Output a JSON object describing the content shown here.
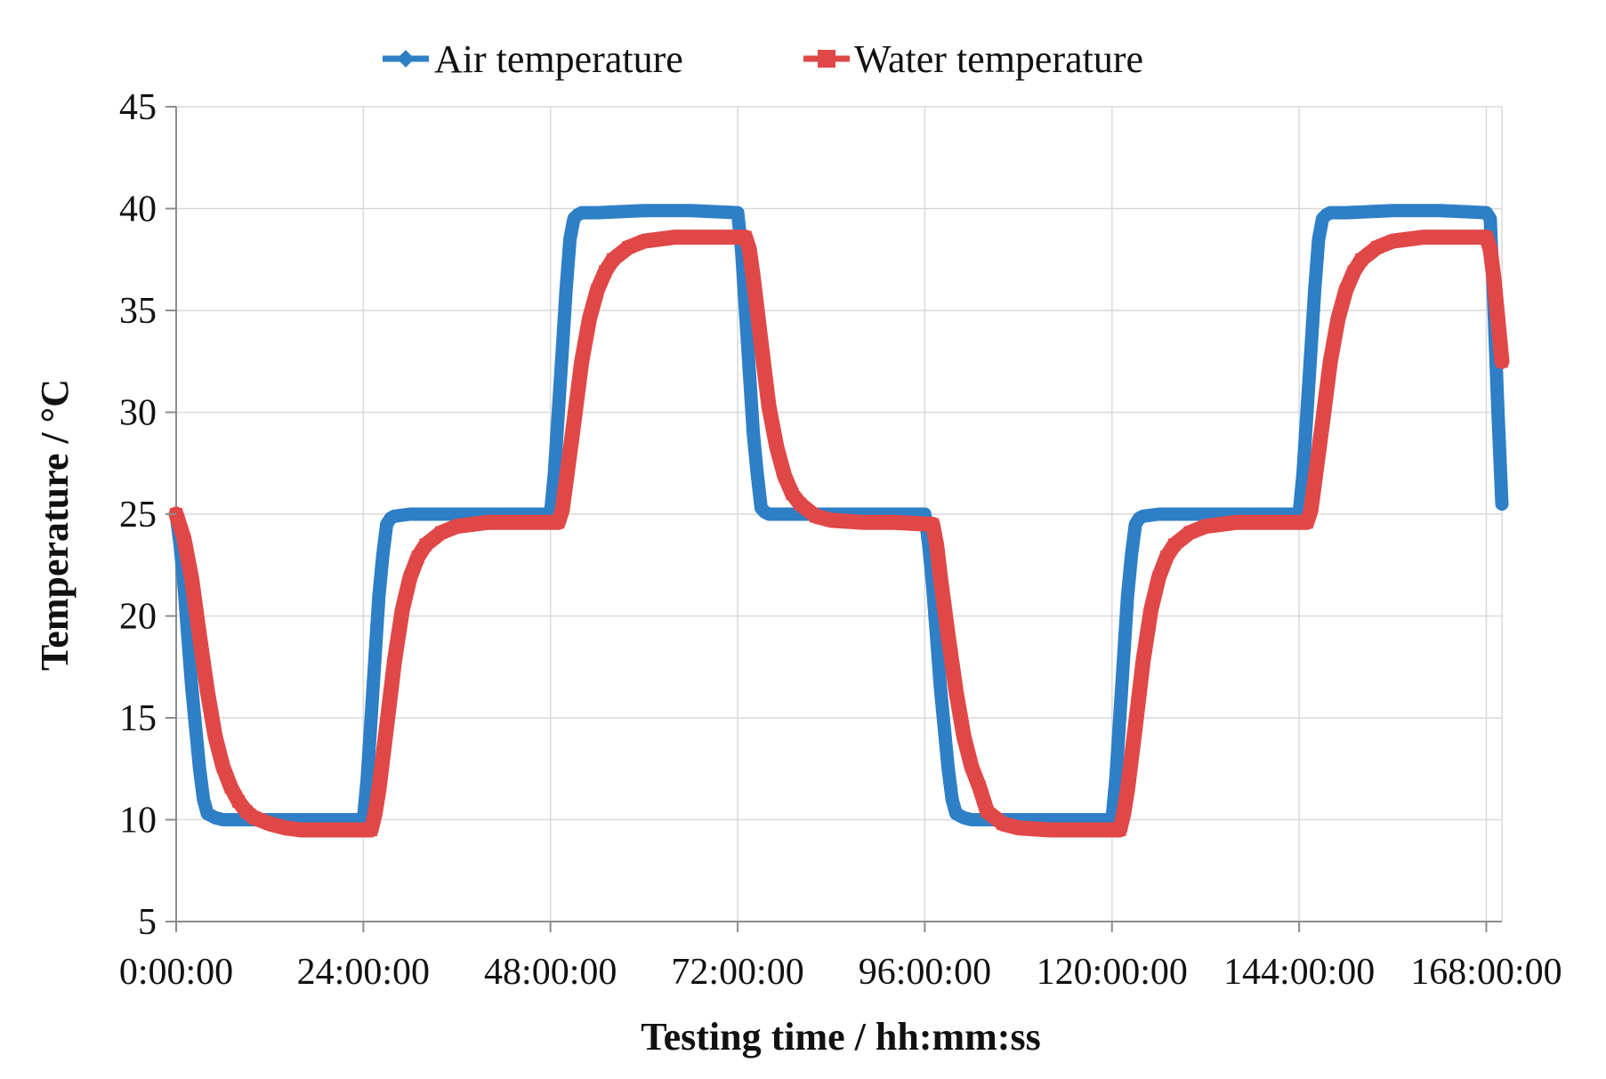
{
  "chart_data": {
    "type": "line",
    "title": "",
    "xlabel": "Testing time / hh:mm:ss",
    "ylabel": "Temperature / °C",
    "x_unit": "hours",
    "xlim": [
      0,
      170
    ],
    "ylim": [
      5,
      45
    ],
    "x_ticks": [
      0,
      24,
      48,
      72,
      96,
      120,
      144,
      168
    ],
    "x_tick_labels": [
      "0:00:00",
      "24:00:00",
      "48:00:00",
      "72:00:00",
      "96:00:00",
      "120:00:00",
      "144:00:00",
      "168:00:00"
    ],
    "y_ticks": [
      5,
      10,
      15,
      20,
      25,
      30,
      35,
      40,
      45
    ],
    "y_tick_labels": [
      "5",
      "10",
      "15",
      "20",
      "25",
      "30",
      "35",
      "40",
      "45"
    ],
    "grid": true,
    "legend_position": "top-center",
    "series": [
      {
        "name": "Air temperature",
        "color": "#2e7fc6",
        "marker": "diamond",
        "x": [
          0,
          0.5,
          1,
          1.5,
          2,
          2.5,
          3,
          3.5,
          4,
          5,
          6,
          8,
          12,
          18,
          24,
          24.5,
          25,
          25.5,
          26,
          26.5,
          27,
          27.5,
          28,
          30,
          36,
          42,
          48,
          48.5,
          49,
          49.5,
          50,
          50.5,
          51,
          51.5,
          52,
          54,
          60,
          66,
          72,
          72.5,
          73,
          73.5,
          74,
          74.5,
          75,
          75.5,
          76,
          78,
          84,
          90,
          96,
          96.5,
          97,
          97.5,
          98,
          98.5,
          99,
          99.5,
          100,
          101,
          102,
          106,
          112,
          120,
          120.5,
          121,
          121.5,
          122,
          122.5,
          123,
          123.5,
          124,
          126,
          132,
          138,
          144,
          144.5,
          145,
          145.5,
          146,
          146.5,
          147,
          147.5,
          148,
          150,
          156,
          162,
          168,
          168.5,
          169,
          169.5,
          170
        ],
        "values": [
          25,
          23.5,
          21.5,
          19,
          16.5,
          14.5,
          12.5,
          11,
          10.3,
          10.1,
          10,
          10,
          10,
          10,
          10,
          12,
          15,
          18,
          21,
          23,
          24.5,
          24.8,
          24.9,
          25,
          25,
          25,
          25,
          27,
          30,
          33,
          36,
          38.5,
          39.5,
          39.7,
          39.8,
          39.8,
          39.9,
          39.9,
          39.8,
          38,
          35,
          32,
          29,
          27,
          25.3,
          25.1,
          25,
          25,
          25,
          25,
          25,
          23.5,
          21.5,
          19,
          16.5,
          14.5,
          12.5,
          11,
          10.3,
          10.1,
          10,
          10,
          10,
          10,
          12,
          15,
          18,
          21,
          23,
          24.5,
          24.8,
          24.9,
          25,
          25,
          25,
          25,
          27,
          30,
          33,
          36,
          38.5,
          39.5,
          39.7,
          39.8,
          39.8,
          39.9,
          39.9,
          39.8,
          39.5,
          35,
          30,
          25.5
        ]
      },
      {
        "name": "Water temperature",
        "color": "#e04848",
        "marker": "square",
        "x": [
          0,
          1,
          2,
          3,
          4,
          5,
          6,
          7,
          8,
          9,
          10,
          12,
          14,
          16,
          18,
          22,
          25,
          25.5,
          26,
          27,
          28,
          29,
          30,
          31,
          32,
          34,
          36,
          40,
          44,
          49,
          49.5,
          50,
          51,
          52,
          53,
          54,
          55,
          56,
          58,
          60,
          64,
          68,
          73,
          73.5,
          74,
          75,
          76,
          77,
          78,
          79,
          80,
          82,
          84,
          88,
          92,
          97,
          97.5,
          98,
          99,
          100,
          101,
          102,
          103,
          104,
          106,
          108,
          112,
          116,
          121,
          121.5,
          122,
          123,
          124,
          125,
          126,
          127,
          128,
          130,
          132,
          136,
          140,
          145,
          145.5,
          146,
          147,
          148,
          149,
          150,
          151,
          152,
          154,
          156,
          160,
          164,
          168,
          168.5,
          169,
          169.5,
          170
        ],
        "values": [
          25,
          23.8,
          21.8,
          19,
          16.3,
          14.1,
          12.6,
          11.6,
          10.9,
          10.4,
          10.1,
          9.8,
          9.6,
          9.5,
          9.5,
          9.5,
          9.5,
          10.3,
          11.5,
          14.6,
          17.8,
          20.3,
          21.9,
          22.9,
          23.5,
          24.1,
          24.4,
          24.6,
          24.6,
          24.6,
          25.2,
          26.6,
          29.5,
          32.5,
          34.6,
          36,
          36.9,
          37.5,
          38.1,
          38.4,
          38.6,
          38.6,
          38.6,
          38,
          36.6,
          33.4,
          30.3,
          28.3,
          26.9,
          26,
          25.5,
          24.9,
          24.7,
          24.6,
          24.6,
          24.5,
          23.5,
          21.9,
          19,
          16.3,
          14.1,
          12.6,
          11.6,
          10.4,
          9.8,
          9.6,
          9.5,
          9.5,
          9.5,
          10.3,
          11.5,
          14.6,
          17.8,
          20.3,
          21.9,
          22.9,
          23.5,
          24.1,
          24.4,
          24.6,
          24.6,
          24.6,
          25.2,
          26.6,
          29.5,
          32.5,
          34.6,
          36,
          36.9,
          37.5,
          38.1,
          38.4,
          38.6,
          38.6,
          38.6,
          38,
          36.5,
          34.5,
          32.5
        ]
      }
    ]
  }
}
